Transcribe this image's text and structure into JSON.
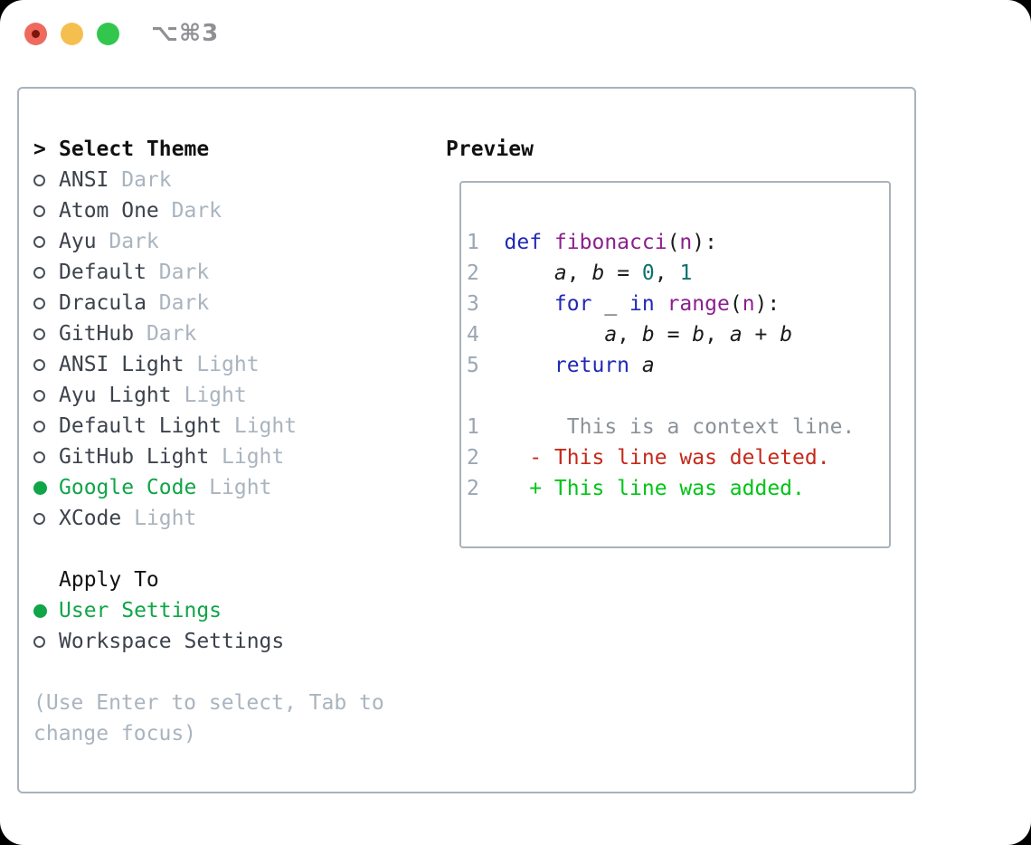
{
  "window": {
    "title": "⌥⌘3",
    "traffic_lights": [
      {
        "name": "close-button",
        "color_key": "traffic_red",
        "has_dot": true
      },
      {
        "name": "minimize-button",
        "color_key": "traffic_yellow",
        "has_dot": false
      },
      {
        "name": "zoom-button",
        "color_key": "traffic_green",
        "has_dot": false
      }
    ]
  },
  "theme_panel": {
    "header": {
      "prompt": ">",
      "label": "Select Theme"
    },
    "themes": [
      {
        "name": "ANSI",
        "variant": "Dark",
        "selected": false
      },
      {
        "name": "Atom One",
        "variant": "Dark",
        "selected": false
      },
      {
        "name": "Ayu",
        "variant": "Dark",
        "selected": false
      },
      {
        "name": "Default",
        "variant": "Dark",
        "selected": false
      },
      {
        "name": "Dracula",
        "variant": "Dark",
        "selected": false
      },
      {
        "name": "GitHub",
        "variant": "Dark",
        "selected": false
      },
      {
        "name": "ANSI Light",
        "variant": "Light",
        "selected": false
      },
      {
        "name": "Ayu Light",
        "variant": "Light",
        "selected": false
      },
      {
        "name": "Default Light",
        "variant": "Light",
        "selected": false
      },
      {
        "name": "GitHub Light",
        "variant": "Light",
        "selected": false
      },
      {
        "name": "Google Code",
        "variant": "Light",
        "selected": true
      },
      {
        "name": "XCode",
        "variant": "Light",
        "selected": false
      }
    ],
    "apply_to": {
      "label": "Apply To",
      "options": [
        {
          "name": "User Settings",
          "selected": true
        },
        {
          "name": "Workspace Settings",
          "selected": false
        }
      ]
    },
    "help_lines": [
      "(Use Enter to select, Tab to",
      "change focus)"
    ]
  },
  "preview": {
    "label": "Preview",
    "code_lines": [
      {
        "num": "1",
        "segments": [
          {
            "t": "def",
            "c": "kw"
          },
          {
            "t": " ",
            "c": "pl"
          },
          {
            "t": "fibonacci",
            "c": "fn"
          },
          {
            "t": "(",
            "c": "pl"
          },
          {
            "t": "n",
            "c": "fn"
          },
          {
            "t": "):",
            "c": "pl"
          }
        ]
      },
      {
        "num": "2",
        "segments": [
          {
            "t": "    ",
            "c": "pl"
          },
          {
            "t": "a",
            "c": "var"
          },
          {
            "t": ", ",
            "c": "pl"
          },
          {
            "t": "b",
            "c": "var"
          },
          {
            "t": " = ",
            "c": "pl"
          },
          {
            "t": "0",
            "c": "lit"
          },
          {
            "t": ", ",
            "c": "pl"
          },
          {
            "t": "1",
            "c": "lit"
          }
        ]
      },
      {
        "num": "3",
        "segments": [
          {
            "t": "    ",
            "c": "pl"
          },
          {
            "t": "for",
            "c": "kw"
          },
          {
            "t": " _ ",
            "c": "pl"
          },
          {
            "t": "in",
            "c": "kw"
          },
          {
            "t": " ",
            "c": "pl"
          },
          {
            "t": "range",
            "c": "fn"
          },
          {
            "t": "(",
            "c": "pl"
          },
          {
            "t": "n",
            "c": "fn"
          },
          {
            "t": "):",
            "c": "pl"
          }
        ]
      },
      {
        "num": "4",
        "segments": [
          {
            "t": "        ",
            "c": "pl"
          },
          {
            "t": "a",
            "c": "var"
          },
          {
            "t": ", ",
            "c": "pl"
          },
          {
            "t": "b",
            "c": "var"
          },
          {
            "t": " = ",
            "c": "pl"
          },
          {
            "t": "b",
            "c": "var"
          },
          {
            "t": ", ",
            "c": "pl"
          },
          {
            "t": "a",
            "c": "var"
          },
          {
            "t": " + ",
            "c": "pl"
          },
          {
            "t": "b",
            "c": "var"
          }
        ]
      },
      {
        "num": "5",
        "segments": [
          {
            "t": "    ",
            "c": "pl"
          },
          {
            "t": "return",
            "c": "kw"
          },
          {
            "t": " ",
            "c": "pl"
          },
          {
            "t": "a",
            "c": "var"
          }
        ]
      }
    ],
    "diff_lines": [
      {
        "num": "1",
        "kind": "context",
        "segments": [
          {
            "t": "     ",
            "c": "pl"
          },
          {
            "t": "This is a context line.",
            "c": "ctx"
          }
        ]
      },
      {
        "num": "2",
        "kind": "deleted",
        "segments": [
          {
            "t": "  ",
            "c": "pl"
          },
          {
            "t": "- This line was deleted.",
            "c": "del"
          }
        ]
      },
      {
        "num": "2",
        "kind": "added",
        "segments": [
          {
            "t": "  ",
            "c": "pl"
          },
          {
            "t": "+ This line was added.",
            "c": "add"
          }
        ]
      }
    ]
  },
  "colors": {
    "green": "#10a548",
    "text_black": "#111111",
    "text_dark": "#3c424c",
    "muted": "#a9b4bf",
    "border": "#a9b2bc",
    "line_number": "#9aa6b4",
    "kw": "#2028b4",
    "fn": "#8c1f8c",
    "lit": "#0e7070",
    "plain": "#1b1b1b",
    "ctx": "#8b9198",
    "del": "#c5291a",
    "add": "#00c417",
    "traffic_red": "#ee6a5e",
    "traffic_red_dot": "#7e150a",
    "traffic_yellow": "#f5bf4f",
    "traffic_green": "#32c74c",
    "title_gray": "#8f9094"
  }
}
